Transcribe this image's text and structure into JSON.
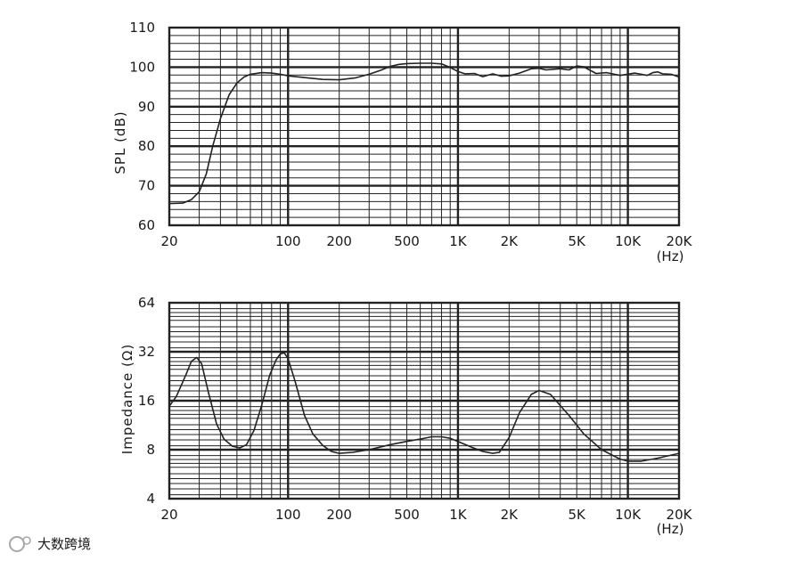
{
  "watermark": "大数跨境",
  "chart_data": [
    {
      "type": "line",
      "ylabel": "SPL (dB)",
      "xunit": "(Hz)",
      "x_scale": "log",
      "y_scale": "linear",
      "xlim": [
        20,
        20000
      ],
      "ylim": [
        60,
        110
      ],
      "grid": true,
      "x_ticks": [
        {
          "value": 20,
          "label": "20"
        },
        {
          "value": 100,
          "label": "100"
        },
        {
          "value": 200,
          "label": "200"
        },
        {
          "value": 500,
          "label": "500"
        },
        {
          "value": 1000,
          "label": "1K"
        },
        {
          "value": 2000,
          "label": "2K"
        },
        {
          "value": 5000,
          "label": "5K"
        },
        {
          "value": 10000,
          "label": "10K"
        },
        {
          "value": 20000,
          "label": "20K"
        }
      ],
      "y_ticks": [
        {
          "value": 60,
          "label": "60"
        },
        {
          "value": 70,
          "label": "70"
        },
        {
          "value": 80,
          "label": "80"
        },
        {
          "value": 90,
          "label": "90"
        },
        {
          "value": 100,
          "label": "100"
        },
        {
          "value": 110,
          "label": "110"
        }
      ],
      "series": [
        {
          "color": "#222222",
          "points": [
            [
              20,
              65.5
            ],
            [
              24,
              65.6
            ],
            [
              27,
              66.5
            ],
            [
              30,
              68.5
            ],
            [
              33,
              73
            ],
            [
              36,
              80
            ],
            [
              40,
              87
            ],
            [
              45,
              93
            ],
            [
              50,
              96
            ],
            [
              55,
              97.5
            ],
            [
              60,
              98.2
            ],
            [
              70,
              98.6
            ],
            [
              80,
              98.5
            ],
            [
              90,
              98.2
            ],
            [
              100,
              97.8
            ],
            [
              130,
              97.3
            ],
            [
              160,
              96.9
            ],
            [
              200,
              96.8
            ],
            [
              250,
              97.3
            ],
            [
              300,
              98.2
            ],
            [
              350,
              99.2
            ],
            [
              400,
              100.2
            ],
            [
              450,
              100.7
            ],
            [
              500,
              100.9
            ],
            [
              600,
              101
            ],
            [
              700,
              101
            ],
            [
              800,
              100.8
            ],
            [
              900,
              99.9
            ],
            [
              1000,
              98.9
            ],
            [
              1100,
              98.3
            ],
            [
              1250,
              98.4
            ],
            [
              1400,
              97.6
            ],
            [
              1600,
              98.3
            ],
            [
              1800,
              97.7
            ],
            [
              2000,
              97.8
            ],
            [
              2300,
              98.5
            ],
            [
              2700,
              99.6
            ],
            [
              3000,
              99.7
            ],
            [
              3300,
              99.3
            ],
            [
              4000,
              99.6
            ],
            [
              4500,
              99.3
            ],
            [
              5000,
              100.3
            ],
            [
              5500,
              100.1
            ],
            [
              6000,
              99.2
            ],
            [
              6500,
              98.4
            ],
            [
              7500,
              98.6
            ],
            [
              9000,
              97.9
            ],
            [
              11000,
              98.5
            ],
            [
              12000,
              98.2
            ],
            [
              13000,
              97.9
            ],
            [
              14000,
              98.6
            ],
            [
              15000,
              98.8
            ],
            [
              16000,
              98.3
            ],
            [
              18000,
              98.2
            ],
            [
              20000,
              97.5
            ]
          ]
        }
      ]
    },
    {
      "type": "line",
      "ylabel": "Impedance (Ω)",
      "xunit": "(Hz)",
      "x_scale": "log",
      "y_scale": "log",
      "xlim": [
        20,
        20000
      ],
      "ylim": [
        4,
        64
      ],
      "grid": true,
      "x_ticks": [
        {
          "value": 20,
          "label": "20"
        },
        {
          "value": 100,
          "label": "100"
        },
        {
          "value": 200,
          "label": "200"
        },
        {
          "value": 500,
          "label": "500"
        },
        {
          "value": 1000,
          "label": "1K"
        },
        {
          "value": 2000,
          "label": "2K"
        },
        {
          "value": 5000,
          "label": "5K"
        },
        {
          "value": 10000,
          "label": "10K"
        },
        {
          "value": 20000,
          "label": "20K"
        }
      ],
      "y_ticks": [
        {
          "value": 4,
          "label": "4"
        },
        {
          "value": 8,
          "label": "8"
        },
        {
          "value": 16,
          "label": "16"
        },
        {
          "value": 32,
          "label": "32"
        },
        {
          "value": 64,
          "label": "64"
        }
      ],
      "series": [
        {
          "color": "#222222",
          "points": [
            [
              20,
              14.8
            ],
            [
              22,
              17
            ],
            [
              25,
              23
            ],
            [
              27,
              28
            ],
            [
              29,
              29.5
            ],
            [
              31,
              27
            ],
            [
              34,
              18
            ],
            [
              38,
              11.5
            ],
            [
              42,
              9.3
            ],
            [
              47,
              8.4
            ],
            [
              52,
              8.2
            ],
            [
              57,
              8.6
            ],
            [
              63,
              10.5
            ],
            [
              70,
              15
            ],
            [
              78,
              23
            ],
            [
              85,
              28.5
            ],
            [
              90,
              31
            ],
            [
              95,
              31.5
            ],
            [
              100,
              29
            ],
            [
              110,
              21
            ],
            [
              125,
              13
            ],
            [
              140,
              10
            ],
            [
              160,
              8.5
            ],
            [
              180,
              7.8
            ],
            [
              200,
              7.6
            ],
            [
              240,
              7.7
            ],
            [
              300,
              8
            ],
            [
              400,
              8.6
            ],
            [
              500,
              9
            ],
            [
              600,
              9.3
            ],
            [
              700,
              9.6
            ],
            [
              800,
              9.6
            ],
            [
              900,
              9.4
            ],
            [
              1000,
              9
            ],
            [
              1200,
              8.3
            ],
            [
              1400,
              7.8
            ],
            [
              1600,
              7.6
            ],
            [
              1750,
              7.7
            ],
            [
              2000,
              9.5
            ],
            [
              2300,
              13.5
            ],
            [
              2700,
              17.5
            ],
            [
              3000,
              18.5
            ],
            [
              3500,
              17.5
            ],
            [
              4500,
              13
            ],
            [
              5500,
              10
            ],
            [
              7000,
              8
            ],
            [
              9000,
              7
            ],
            [
              10000,
              6.8
            ],
            [
              12000,
              6.8
            ],
            [
              15000,
              7.1
            ],
            [
              20000,
              7.6
            ]
          ]
        }
      ]
    }
  ]
}
